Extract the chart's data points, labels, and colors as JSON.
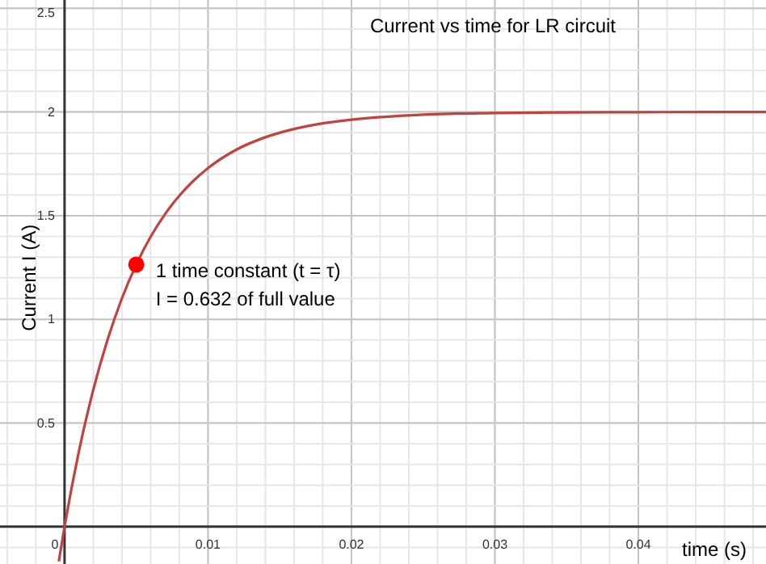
{
  "chart_data": {
    "type": "line",
    "title": "Current vs time for LR circuit",
    "xlabel": "time (s)",
    "ylabel": "Current I (A)",
    "xlim": [
      -0.0045,
      0.0489
    ],
    "ylim": [
      -0.18,
      2.54
    ],
    "xticks": [
      0,
      0.01,
      0.02,
      0.03,
      0.04
    ],
    "yticks": [
      0.5,
      1,
      1.5,
      2,
      2.5
    ],
    "grid": true,
    "annotations": [
      {
        "text": "1 time constant (t = τ)\nI = 0.632 of full value",
        "x": 0.005,
        "y": 1.264
      }
    ],
    "series": [
      {
        "color": "#c0433f",
        "x": [
          -0.0004,
          0,
          0.001,
          0.002,
          0.003,
          0.004,
          0.005,
          0.006,
          0.007,
          0.008,
          0.009,
          0.01,
          0.012,
          0.014,
          0.016,
          0.018,
          0.02,
          0.025,
          0.03,
          0.035,
          0.04,
          0.045,
          0.0489
        ],
        "values": [
          -0.167,
          0,
          0.363,
          0.659,
          0.902,
          1.101,
          1.264,
          1.398,
          1.507,
          1.596,
          1.669,
          1.729,
          1.819,
          1.878,
          1.918,
          1.945,
          1.963,
          1.987,
          1.995,
          1.998,
          1.999,
          2.0,
          2.0
        ]
      },
      {
        "type": "scatter",
        "color": "#ff0000",
        "marker": "circle",
        "x": [
          0.005
        ],
        "values": [
          1.264
        ]
      }
    ]
  }
}
